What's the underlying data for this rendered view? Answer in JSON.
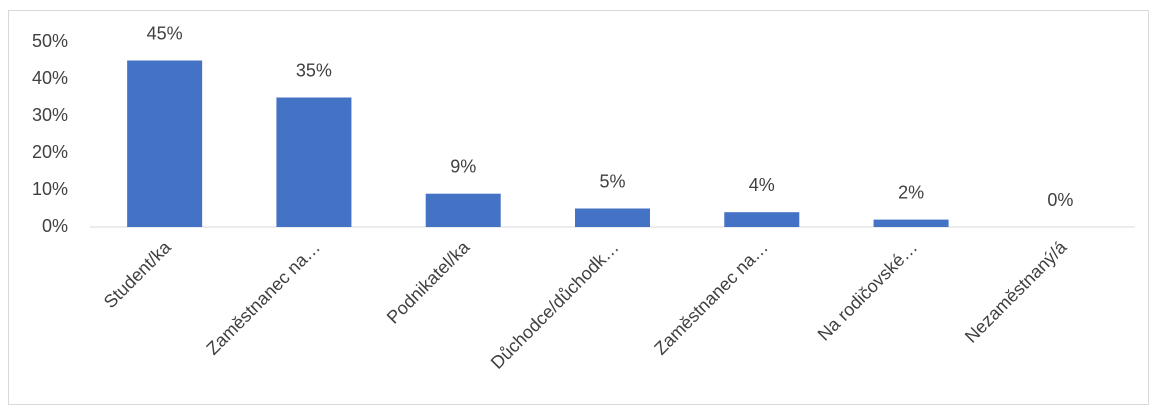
{
  "chart_data": {
    "type": "bar",
    "categories": [
      "Student/ka",
      "Zaměstnanec na…",
      "Podnikatel/ka",
      "Důchodce/důchodk…",
      "Zaměstnanec na…",
      "Na rodičovské…",
      "Nezaměstnaný/á"
    ],
    "values": [
      45,
      35,
      9,
      5,
      4,
      2,
      0
    ],
    "value_labels": [
      "45%",
      "35%",
      "9%",
      "5%",
      "4%",
      "2%",
      "0%"
    ],
    "color": "#4472c4",
    "ylim": [
      0,
      50
    ],
    "yticks": [
      {
        "value": 0,
        "label": "0%"
      },
      {
        "value": 10,
        "label": "10%"
      },
      {
        "value": 20,
        "label": "20%"
      },
      {
        "value": 30,
        "label": "30%"
      },
      {
        "value": 40,
        "label": "40%"
      },
      {
        "value": 50,
        "label": "50%"
      }
    ],
    "grid": false
  }
}
